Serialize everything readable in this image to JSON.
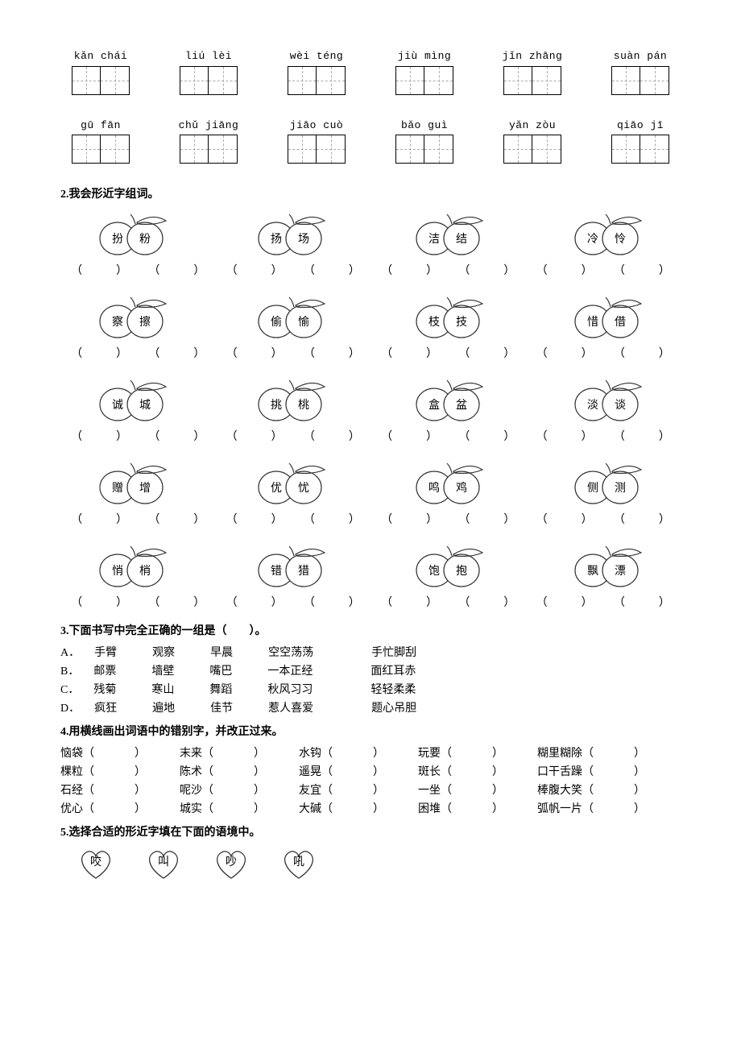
{
  "pinyin_rows": [
    [
      "kǎn chái",
      "liú lèi",
      "wèi téng",
      "jiù  mìng",
      "jǐn zhāng",
      "suàn pán"
    ],
    [
      "gū fān",
      "chǔ jiāng",
      "jiāo cuò",
      "bǎo  guì",
      "yǎn zòu",
      "qiāo  jī"
    ]
  ],
  "section2": {
    "title": "2.我会形近字组词。"
  },
  "apple_rows": [
    [
      [
        "扮",
        "粉"
      ],
      [
        "扬",
        "场"
      ],
      [
        "洁",
        "结"
      ],
      [
        "冷",
        "怜"
      ]
    ],
    [
      [
        "察",
        "擦"
      ],
      [
        "偷",
        "愉"
      ],
      [
        "枝",
        "技"
      ],
      [
        "惜",
        "借"
      ]
    ],
    [
      [
        "诚",
        "城"
      ],
      [
        "挑",
        "桃"
      ],
      [
        "盒",
        "盆"
      ],
      [
        "淡",
        "谈"
      ]
    ],
    [
      [
        "赠",
        "增"
      ],
      [
        "优",
        "忧"
      ],
      [
        "鸣",
        "鸡"
      ],
      [
        "侧",
        "测"
      ]
    ],
    [
      [
        "悄",
        "梢"
      ],
      [
        "错",
        "猎"
      ],
      [
        "饱",
        "抱"
      ],
      [
        "飘",
        "漂"
      ]
    ]
  ],
  "section3": {
    "title": "3.下面书写中完全正确的一组是（　　）。",
    "options": [
      [
        "A．",
        "手臂",
        "观察",
        "早晨",
        "空空荡荡",
        "手忙脚刮"
      ],
      [
        "B．",
        "邮票",
        "墙壁",
        "嘴巴",
        "一本正经",
        "面红耳赤"
      ],
      [
        "C．",
        "残菊",
        "寒山",
        "舞蹈",
        "秋风习习",
        "轻轻柔柔"
      ],
      [
        "D．",
        "疯狂",
        "遍地",
        "佳节",
        "惹人喜爱",
        "题心吊胆"
      ]
    ]
  },
  "section4": {
    "title": "4.用横线画出词语中的错别字，并改正过来。",
    "rows": [
      [
        "恼袋",
        "末来",
        "水钩",
        "玩要",
        "糊里糊除"
      ],
      [
        "棵粒",
        "陈术",
        "遥晃",
        "斑长",
        "口干舌躁"
      ],
      [
        "石经",
        "呢沙",
        "友宜",
        "一坐",
        "棒腹大笑"
      ],
      [
        "优心",
        "城实",
        "大碱",
        "困堆",
        "弧帆一片"
      ]
    ]
  },
  "section5": {
    "title": "5.选择合适的形近字填在下面的语境中。",
    "hearts": [
      "咬",
      "叫",
      "吵",
      "吼"
    ]
  },
  "colors": {
    "text": "#000000",
    "bg": "#ffffff",
    "dash": "#aaaaaa"
  }
}
